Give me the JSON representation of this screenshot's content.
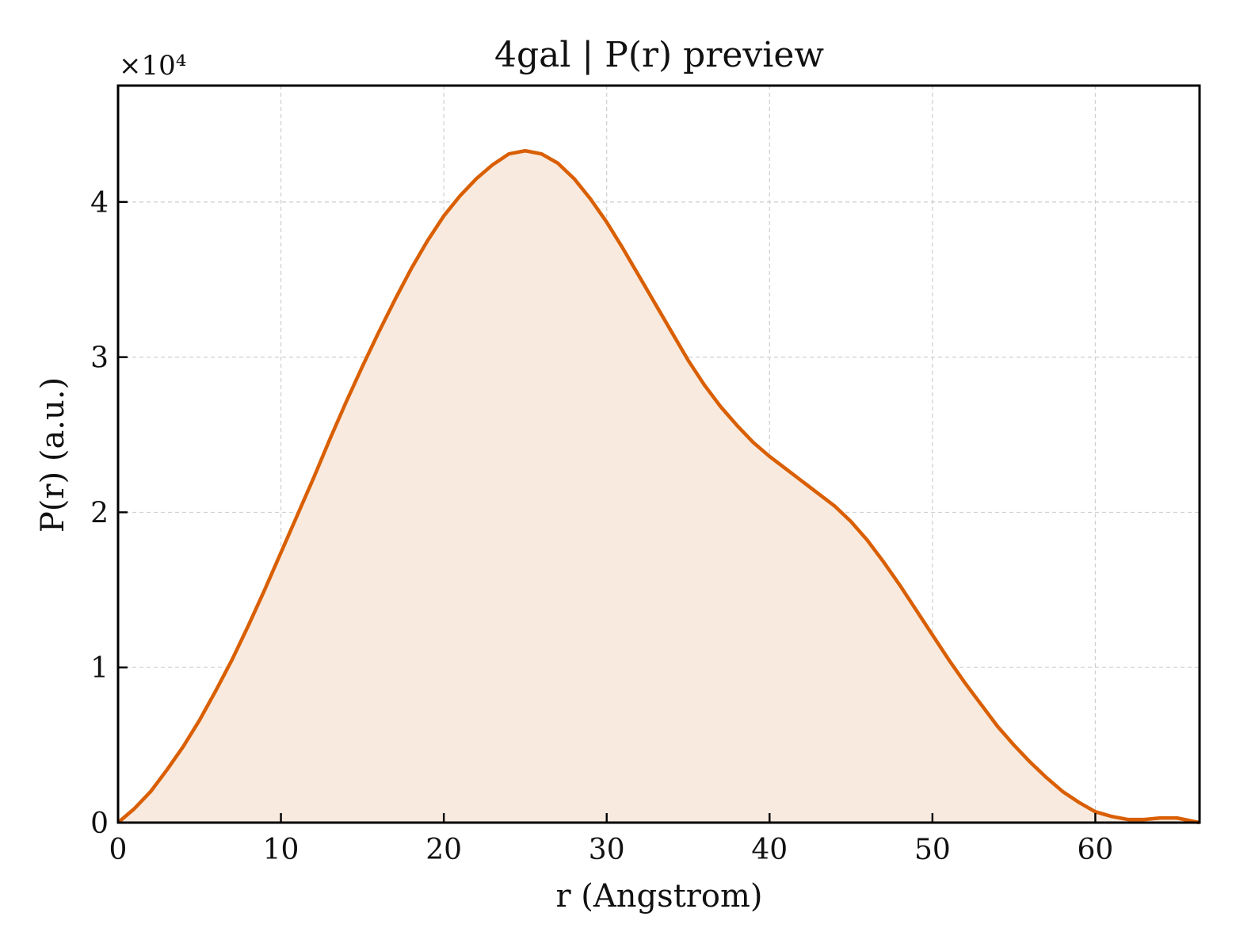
{
  "chart_data": {
    "type": "area",
    "title": "4gal | P(r) preview",
    "xlabel": "r (Angstrom)",
    "ylabel": "P(r) (a.u.)",
    "y_multiplier_label": "×10⁴",
    "y_scale": 10000,
    "xlim": [
      0,
      66.4
    ],
    "ylim": [
      0,
      4.75
    ],
    "xticks": [
      0,
      10,
      20,
      30,
      40,
      50,
      60
    ],
    "yticks": [
      0,
      1,
      2,
      3,
      4
    ],
    "grid": true,
    "colors": {
      "line": "#d95f02",
      "fill": "#f9eadf"
    },
    "series": [
      {
        "x": [
          0,
          1,
          2,
          3,
          4,
          5,
          6,
          7,
          8,
          9,
          10,
          11,
          12,
          13,
          14,
          15,
          16,
          17,
          18,
          19,
          20,
          21,
          22,
          23,
          24,
          25,
          26,
          27,
          28,
          29,
          30,
          31,
          32,
          33,
          34,
          35,
          36,
          37,
          38,
          39,
          40,
          41,
          42,
          43,
          44,
          45,
          46,
          47,
          48,
          49,
          50,
          51,
          52,
          53,
          54,
          55,
          56,
          57,
          58,
          59,
          60,
          61,
          62,
          63,
          64,
          65,
          66.4
        ],
        "y": [
          0.0,
          0.09,
          0.2,
          0.34,
          0.49,
          0.66,
          0.85,
          1.05,
          1.27,
          1.5,
          1.74,
          1.98,
          2.22,
          2.47,
          2.71,
          2.94,
          3.16,
          3.37,
          3.57,
          3.75,
          3.91,
          4.04,
          4.15,
          4.24,
          4.31,
          4.33,
          4.31,
          4.25,
          4.15,
          4.02,
          3.87,
          3.7,
          3.52,
          3.34,
          3.16,
          2.98,
          2.82,
          2.68,
          2.56,
          2.45,
          2.36,
          2.28,
          2.2,
          2.12,
          2.04,
          1.94,
          1.82,
          1.68,
          1.53,
          1.37,
          1.21,
          1.05,
          0.9,
          0.76,
          0.62,
          0.5,
          0.39,
          0.29,
          0.2,
          0.13,
          0.07,
          0.04,
          0.02,
          0.02,
          0.03,
          0.03,
          0.0
        ]
      }
    ]
  }
}
